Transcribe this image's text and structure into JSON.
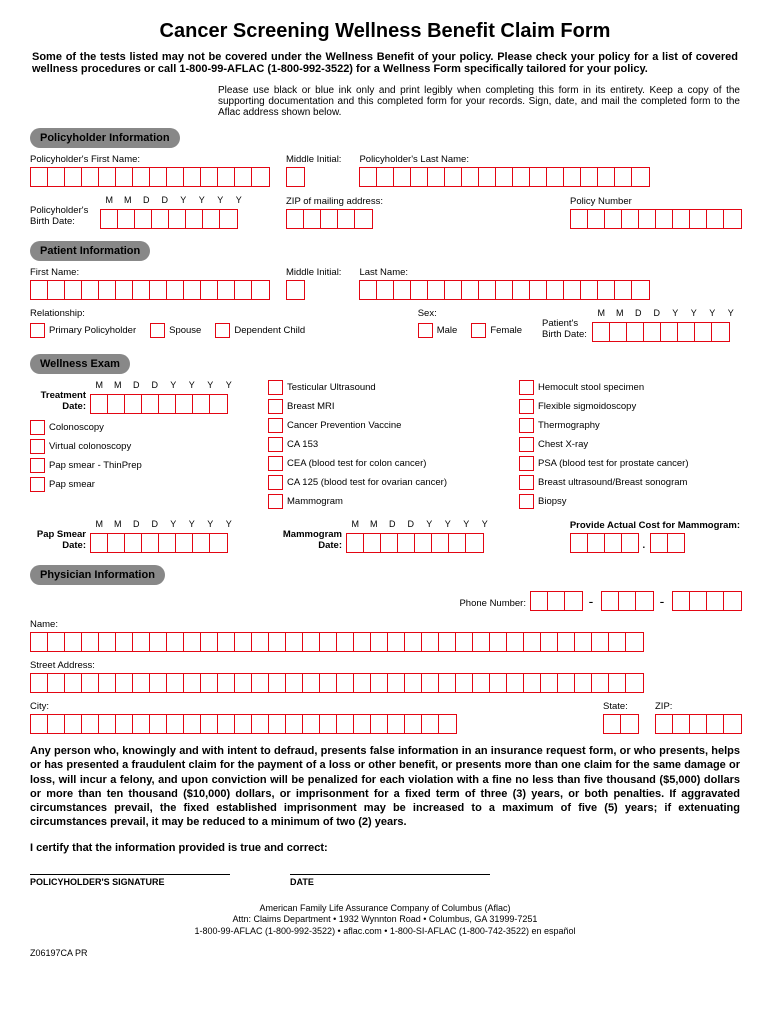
{
  "title": "Cancer Screening Wellness Benefit Claim Form",
  "disclaimer": "Some of the tests listed may not be covered under the Wellness Benefit of your policy. Please check your policy for a list of covered wellness procedures or call 1-800-99-AFLAC (1-800-992-3522) for a Wellness Form specifically tailored for your policy.",
  "instructions": "Please use black or blue ink only and print legibly when completing this form in its entirety.  Keep a copy of the supporting documentation and this completed form for your records.  Sign, date, and mail the completed form to the Aflac address shown below.",
  "sections": {
    "policyholder": "Policyholder Information",
    "patient": "Patient Information",
    "wellness": "Wellness Exam",
    "physician": "Physician Information"
  },
  "labels": {
    "ph_first": "Policyholder's First Name:",
    "mi": "Middle Initial:",
    "ph_last": "Policyholder's Last Name:",
    "ph_birth": "Policyholder's Birth Date:",
    "zip_mail": "ZIP of mailing address:",
    "policy_num": "Policy Number",
    "first": "First Name:",
    "last": "Last Name:",
    "relationship": "Relationship:",
    "rel_primary": "Primary Policyholder",
    "rel_spouse": "Spouse",
    "rel_child": "Dependent Child",
    "sex": "Sex:",
    "male": "Male",
    "female": "Female",
    "pat_birth": "Patient's Birth Date:",
    "treatment_date": "Treatment Date:",
    "pap_date": "Pap Smear Date:",
    "mammo_date": "Mammogram Date:",
    "mammo_cost": "Provide Actual Cost for Mammogram:",
    "phone": "Phone Number:",
    "name": "Name:",
    "street": "Street Address:",
    "city": "City:",
    "state": "State:",
    "zip": "ZIP:"
  },
  "date_header": [
    "M",
    "M",
    "D",
    "D",
    "Y",
    "Y",
    "Y",
    "Y"
  ],
  "exams_col1": [
    "Colonoscopy",
    "Virtual colonoscopy",
    "Pap smear - ThinPrep",
    "Pap smear"
  ],
  "exams_col2": [
    "Testicular Ultrasound",
    "Breast MRI",
    "Cancer Prevention Vaccine",
    "CA 153",
    "CEA (blood test for colon cancer)",
    "CA 125 (blood test for ovarian cancer)",
    "Mammogram"
  ],
  "exams_col3": [
    "Hemocult stool specimen",
    "Flexible sigmoidoscopy",
    "Thermography",
    "Chest X-ray",
    "PSA (blood test for prostate cancer)",
    "Breast ultrasound/Breast sonogram",
    "Biopsy"
  ],
  "legal": "Any person who, knowingly and with intent to defraud, presents false information in an insurance request form, or who presents, helps or has presented a fraudulent claim for the payment of a loss or other benefit, or presents more than one claim for the same damage or loss, will incur a felony, and upon conviction will be penalized for each violation with a fine no less than five thousand ($5,000) dollars or more than ten thousand ($10,000) dollars, or imprisonment for a fixed term of three (3) years, or both penalties.  If aggravated circumstances prevail, the fixed established imprisonment may be increased to a maximum of five (5) years; if extenuating circumstances prevail, it may be reduced to a minimum of two (2) years.",
  "certify": "I certify that the information provided is true and correct:",
  "sig_ph": "POLICYHOLDER'S SIGNATURE",
  "sig_date": "DATE",
  "footer": {
    "company": "American Family Life Assurance Company of Columbus (Aflac)",
    "attn": "Attn: Claims Department • 1932 Wynnton Road • Columbus, GA  31999-7251",
    "phones": "1-800-99-AFLAC (1-800-992-3522) • aflac.com • 1-800-SI-AFLAC (1-800-742-3522) en español"
  },
  "form_code": "Z06197CA    PR",
  "colors": {
    "box_border": "#e30613",
    "header_bg": "#888888"
  },
  "box_counts": {
    "first_name": 14,
    "mi": 1,
    "last_name": 17,
    "birth_date": 8,
    "zip": 5,
    "policy": 10,
    "pat_first": 14,
    "pat_last": 17,
    "phone_a": 3,
    "phone_b": 3,
    "phone_c": 4,
    "phys_name": 36,
    "street": 36,
    "city": 25,
    "state": 2,
    "zip2": 5,
    "cost_a": 4,
    "cost_b": 2
  }
}
